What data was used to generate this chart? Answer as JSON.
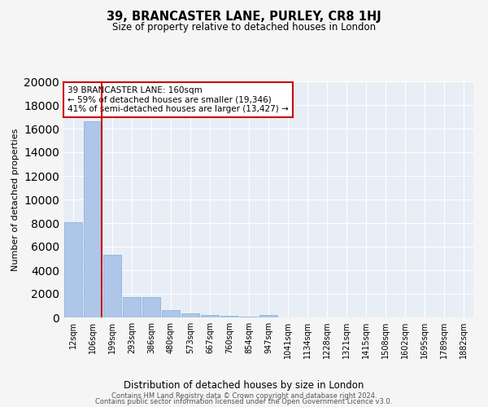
{
  "title": "39, BRANCASTER LANE, PURLEY, CR8 1HJ",
  "subtitle": "Size of property relative to detached houses in London",
  "xlabel": "Distribution of detached houses by size in London",
  "ylabel": "Number of detached properties",
  "bar_color": "#aec6e8",
  "bar_edge_color": "#7aafd4",
  "background_color": "#e8eef6",
  "grid_color": "#ffffff",
  "fig_background": "#f5f5f5",
  "categories": [
    "12sqm",
    "106sqm",
    "199sqm",
    "293sqm",
    "386sqm",
    "480sqm",
    "573sqm",
    "667sqm",
    "760sqm",
    "854sqm",
    "947sqm",
    "1041sqm",
    "1134sqm",
    "1228sqm",
    "1321sqm",
    "1415sqm",
    "1508sqm",
    "1602sqm",
    "1695sqm",
    "1789sqm",
    "1882sqm"
  ],
  "values": [
    8100,
    16600,
    5300,
    1750,
    1750,
    630,
    340,
    190,
    130,
    90,
    190,
    0,
    0,
    0,
    0,
    0,
    0,
    0,
    0,
    0,
    0
  ],
  "property_line_color": "#cc0000",
  "annotation_text": "39 BRANCASTER LANE: 160sqm\n← 59% of detached houses are smaller (19,346)\n41% of semi-detached houses are larger (13,427) →",
  "annotation_box_color": "#cc0000",
  "annotation_fill": "#ffffff",
  "ylim": [
    0,
    20000
  ],
  "yticks": [
    0,
    2000,
    4000,
    6000,
    8000,
    10000,
    12000,
    14000,
    16000,
    18000,
    20000
  ],
  "footer_line1": "Contains HM Land Registry data © Crown copyright and database right 2024.",
  "footer_line2": "Contains public sector information licensed under the Open Government Licence v3.0."
}
